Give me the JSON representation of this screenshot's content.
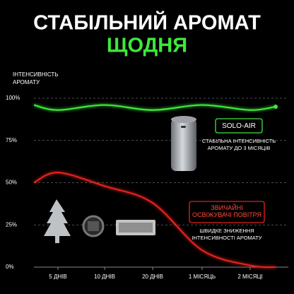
{
  "chart_data": {
    "type": "line",
    "title": "СТАБІЛЬНИЙ АРОМАТ",
    "subtitle": "ЩОДНЯ",
    "ylabel": [
      "ІНТЕНСИВНІСТЬ",
      "АРОМАТУ"
    ],
    "categories": [
      null,
      "5 ДНІВ",
      "10 ДНІВ",
      "20 ДНІВ",
      "1 МІСЯЦЬ",
      "2 МІСЯЦІ",
      null
    ],
    "series": [
      {
        "name": "SOLO-AIR",
        "color": "#3ee83a",
        "values": [
          96,
          93,
          96,
          93,
          96,
          93,
          95
        ]
      },
      {
        "name": "ЗВИЧАЙНІ ОСВІЖУВАЧІ ПОВІТРЯ",
        "color": "#e3211d",
        "values": [
          50,
          56,
          48,
          38,
          10,
          1,
          0
        ]
      }
    ],
    "annotations": [
      {
        "label": [
          "СТАБІЛЬНА ІНТЕНСИВНІСТЬ",
          "АРОМАТУ ДО 3 МІСЯЦІВ"
        ]
      },
      {
        "label": [
          "ШВИДКЕ ЗНИЖЕННЯ",
          "ІНТЕНСИВНОСТІ АРОМАТУ"
        ]
      }
    ],
    "ylim": [
      0,
      100
    ],
    "yticks": [
      {
        "value": 0,
        "label": "0%"
      },
      {
        "value": 25,
        "label": "25%"
      },
      {
        "value": 50,
        "label": "50%"
      },
      {
        "value": 75,
        "label": "75%"
      },
      {
        "value": 100,
        "label": "100%"
      }
    ],
    "grid": true
  }
}
